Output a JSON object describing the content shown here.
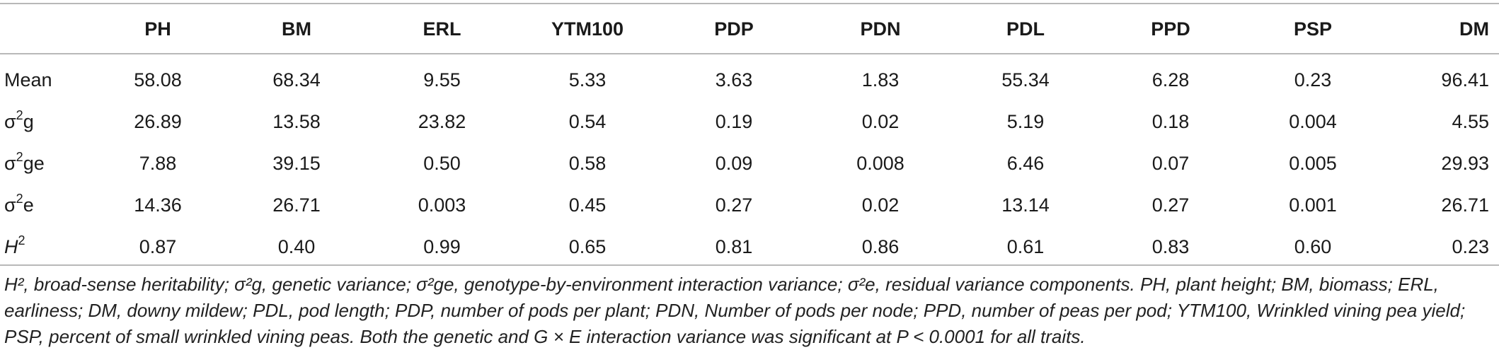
{
  "table": {
    "headers": [
      "",
      "PH",
      "BM",
      "ERL",
      "YTM100",
      "PDP",
      "PDN",
      "PDL",
      "PPD",
      "PSP",
      "DM"
    ],
    "rows": [
      {
        "label": "Mean",
        "sup": "",
        "suffix": "",
        "values": [
          "58.08",
          "68.34",
          "9.55",
          "5.33",
          "3.63",
          "1.83",
          "55.34",
          "6.28",
          "0.23",
          "96.41"
        ]
      },
      {
        "label": "σ",
        "sup": "2",
        "suffix": "g",
        "values": [
          "26.89",
          "13.58",
          "23.82",
          "0.54",
          "0.19",
          "0.02",
          "5.19",
          "0.18",
          "0.004",
          "4.55"
        ]
      },
      {
        "label": "σ",
        "sup": "2",
        "suffix": "ge",
        "values": [
          "7.88",
          "39.15",
          "0.50",
          "0.58",
          "0.09",
          "0.008",
          "6.46",
          "0.07",
          "0.005",
          "29.93"
        ]
      },
      {
        "label": "σ",
        "sup": "2",
        "suffix": "e",
        "values": [
          "14.36",
          "26.71",
          "0.003",
          "0.45",
          "0.27",
          "0.02",
          "13.14",
          "0.27",
          "0.001",
          "26.71"
        ]
      },
      {
        "label": "H",
        "sup": "2",
        "suffix": "",
        "values": [
          "0.87",
          "0.40",
          "0.99",
          "0.65",
          "0.81",
          "0.86",
          "0.61",
          "0.83",
          "0.60",
          "0.23"
        ]
      }
    ]
  },
  "footnote": "H², broad-sense heritability; σ²g, genetic variance; σ²ge, genotype-by-environment interaction variance; σ²e, residual variance components. PH, plant height; BM, biomass; ERL, earliness; DM, downy mildew; PDL, pod length; PDP, number of pods per plant; PDN, Number of pods per node; PPD, number of peas per pod; YTM100, Wrinkled vining pea yield; PSP, percent of small wrinkled vining peas. Both the genetic and G × E interaction variance was significant at P < 0.0001 for all traits."
}
